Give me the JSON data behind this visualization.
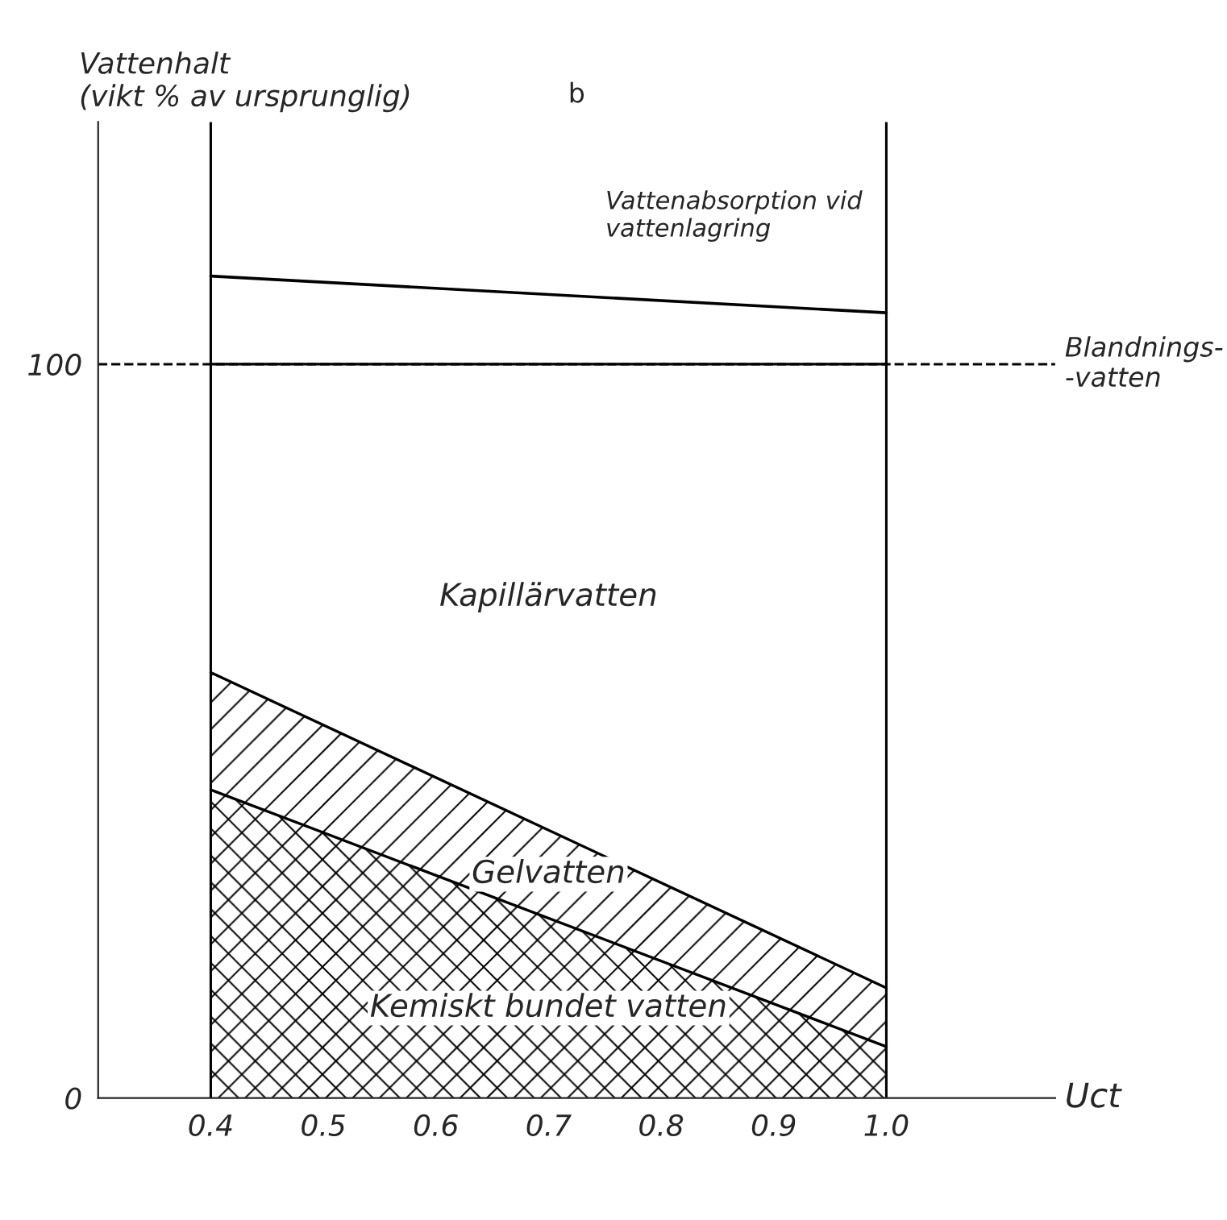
{
  "chart_data": {
    "type": "area",
    "stacked": true,
    "xlabel": "Uct",
    "ylabel": "Vattenhalt\n(vikt % av ursprunglig)",
    "x": [
      0.4,
      1.0
    ],
    "series": [
      {
        "name": "Kemiskt bundet vatten",
        "color": "#000000",
        "values": [
          42,
          7
        ]
      },
      {
        "name": "Gelvatten",
        "color": "#000000",
        "values": [
          16,
          8
        ]
      },
      {
        "name": "Kapillärvatten",
        "color": "#000000",
        "values": [
          42,
          85
        ]
      },
      {
        "type": "line",
        "color": "#000000",
        "values": [
          112,
          107
        ]
      }
    ],
    "xlim": [
      0.3,
      1.15
    ],
    "xticks": [
      0.4,
      0.5,
      0.6,
      0.7,
      0.8,
      0.9,
      {
        "value": 1.0,
        "label": "1.0"
      }
    ],
    "ylim": [
      0,
      133
    ],
    "yticks": [
      0,
      100
    ],
    "ref_lines": [
      {
        "axis": "y",
        "value": 100,
        "label": "Blandnings-\n-vatten",
        "line_style": "dashed",
        "color": "#000000"
      },
      {
        "axis": "x",
        "value": 0.4,
        "color": "#000000"
      },
      {
        "axis": "x",
        "value": 1.0,
        "color": "#000000"
      }
    ],
    "annotations": [
      "Vattenabsorption vid\nvattenlagring",
      "b"
    ],
    "grid": false,
    "legend": false
  }
}
